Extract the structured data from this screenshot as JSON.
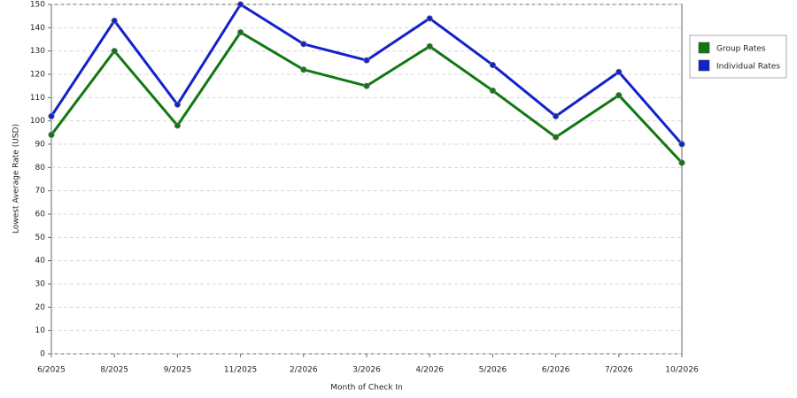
{
  "chart_data": {
    "type": "line",
    "x_label": "Month of Check In",
    "y_label": "Lowest Average Rate (USD)",
    "categories": [
      "6/2025",
      "8/2025",
      "9/2025",
      "11/2025",
      "2/2026",
      "3/2026",
      "4/2026",
      "5/2026",
      "6/2026",
      "7/2026",
      "10/2026"
    ],
    "series": [
      {
        "name": "Group Rates",
        "color": "#117711",
        "values": [
          94,
          130,
          98,
          138,
          122,
          115,
          132,
          113,
          93,
          111,
          82
        ]
      },
      {
        "name": "Individual Rates",
        "color": "#1122cc",
        "values": [
          102,
          143,
          107,
          150,
          133,
          126,
          144,
          124,
          102,
          121,
          90
        ]
      }
    ],
    "ylim": [
      0,
      150
    ],
    "yticks": [
      0,
      10,
      20,
      30,
      40,
      50,
      60,
      70,
      80,
      90,
      100,
      110,
      120,
      130,
      140,
      150
    ],
    "grid": true,
    "legend": "right"
  }
}
